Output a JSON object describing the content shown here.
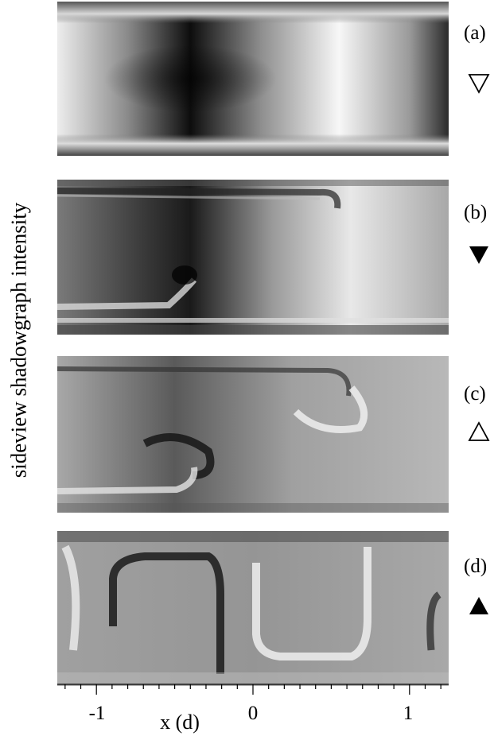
{
  "ylabel": "sideview shadowgraph intensity",
  "xlabel": "x (d)",
  "panels": [
    {
      "label": "(a)",
      "marker": "open-down-triangle"
    },
    {
      "label": "(b)",
      "marker": "filled-down-triangle"
    },
    {
      "label": "(c)",
      "marker": "open-up-triangle"
    },
    {
      "label": "(d)",
      "marker": "filled-up-triangle"
    }
  ],
  "x_ticks": [
    "-1",
    "0",
    "1"
  ],
  "x_range": [
    -1.25,
    1.25
  ],
  "colors": {
    "background": "#ffffff",
    "ink": "#000000"
  }
}
